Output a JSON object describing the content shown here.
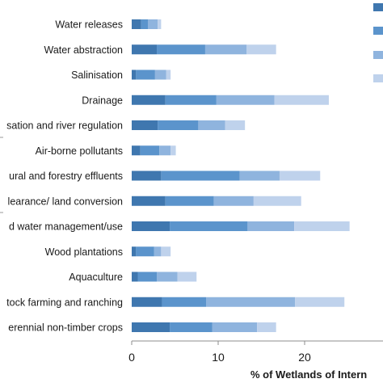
{
  "chart_data": {
    "type": "bar",
    "orientation": "horizontal",
    "stacked": true,
    "categories": [
      "Water releases",
      "Water abstraction",
      "Salinisation",
      "Drainage",
      "sation and river regulation",
      "Air-borne pollutants",
      "ural and forestry effluents",
      "learance/ land conversion",
      "d water management/use",
      "Wood plantations",
      "Aquaculture",
      "tock farming and ranching",
      "erennial non-timber crops"
    ],
    "series": [
      {
        "values": [
          1.1,
          2.9,
          0.5,
          3.9,
          3.0,
          1.0,
          3.4,
          3.9,
          4.4,
          0.5,
          0.7,
          3.5,
          4.4
        ]
      },
      {
        "values": [
          0.8,
          5.6,
          2.2,
          5.9,
          4.7,
          2.2,
          9.1,
          5.6,
          9.0,
          2.1,
          2.2,
          5.1,
          4.9
        ]
      },
      {
        "values": [
          1.1,
          4.8,
          1.3,
          6.7,
          3.1,
          1.3,
          4.6,
          4.6,
          5.4,
          0.8,
          2.4,
          10.3,
          5.2
        ]
      },
      {
        "values": [
          0.4,
          3.4,
          0.5,
          6.3,
          2.3,
          0.6,
          4.7,
          5.5,
          6.4,
          1.1,
          2.2,
          5.7,
          2.2
        ]
      }
    ],
    "colors": [
      "#3f77af",
      "#5b94cc",
      "#8fb4de",
      "#bfd2ec"
    ],
    "xlabel": "% of Wetlands of Intern",
    "xticks": [
      0,
      10,
      20
    ],
    "xlim": [
      0,
      29
    ],
    "grid": false,
    "legend_colors": [
      "#3f77af",
      "#5b94cc",
      "#8fb4de",
      "#bfd2ec"
    ]
  }
}
